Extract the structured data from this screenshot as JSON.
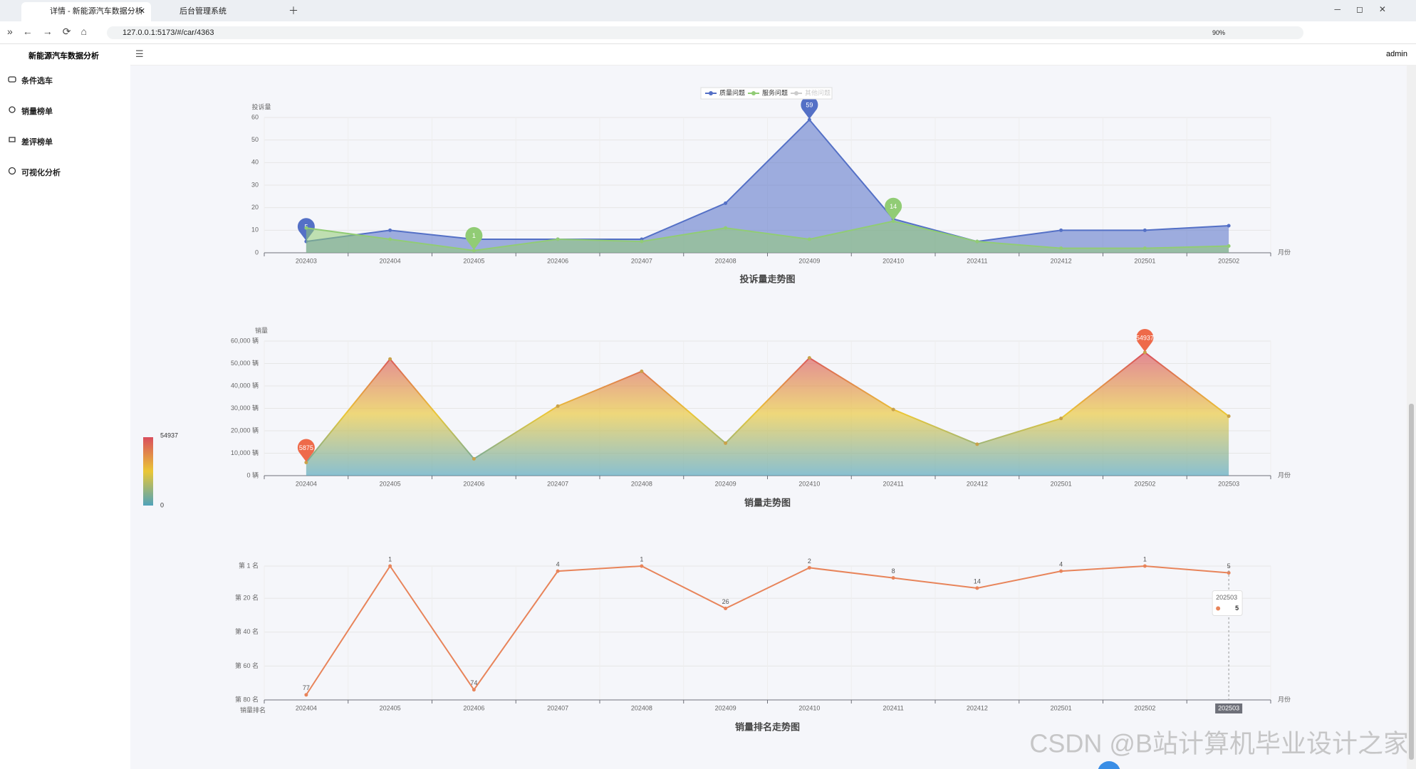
{
  "browser": {
    "tabs": [
      "详情 - 新能源汽车数据分析",
      "后台管理系统"
    ],
    "url": "127.0.0.1:5173/#/car/4363",
    "zoom": "90%"
  },
  "app": {
    "title": "新能源汽车数据分析",
    "user": "admin",
    "menu": [
      "条件选车",
      "销量榜单",
      "差评榜单",
      "可视化分析"
    ]
  },
  "charts": [
    {
      "type": "line",
      "area": true,
      "title": "投诉量走势图",
      "y_name": "投诉量",
      "x_name": "月份",
      "grid": true,
      "mark_points": [
        "max",
        "min"
      ],
      "categories": [
        "202403",
        "202404",
        "202405",
        "202406",
        "202407",
        "202408",
        "202409",
        "202410",
        "202411",
        "202412",
        "202501",
        "202502"
      ],
      "series": [
        {
          "name": "质量问题",
          "color": "#5470c6",
          "values": [
            5,
            10,
            6,
            6,
            6,
            22,
            59,
            15,
            5,
            10,
            10,
            12
          ]
        },
        {
          "name": "服务问题",
          "color": "#91cc75",
          "values": [
            11,
            6,
            1,
            6,
            5,
            11,
            6,
            14,
            5,
            2,
            2,
            3
          ]
        },
        {
          "name": "其他问题",
          "color": "#cccccc",
          "hidden": true
        }
      ],
      "ylim": [
        0,
        60
      ],
      "yticks": [
        0,
        10,
        20,
        30,
        40,
        50,
        60
      ]
    },
    {
      "type": "line",
      "area": true,
      "title": "销量走势图",
      "y_name": "销量",
      "x_name": "月份",
      "grid": true,
      "mark_points": [
        "max",
        "min"
      ],
      "mark_color": "#ee6a4a",
      "categories": [
        "202404",
        "202405",
        "202406",
        "202407",
        "202408",
        "202409",
        "202410",
        "202411",
        "202412",
        "202501",
        "202502",
        "202503"
      ],
      "values": [
        5875,
        52000,
        7500,
        31000,
        46500,
        14500,
        52500,
        29500,
        14000,
        25500,
        54937,
        26500
      ],
      "visual_map": {
        "min": 0,
        "max": 54937,
        "colors": [
          "#d94e5d",
          "#eac736",
          "#50a3ba"
        ]
      },
      "ylim": [
        0,
        60000
      ],
      "yticks": [
        {
          "value": 0,
          "label": "0 辆"
        },
        {
          "value": 10000,
          "label": "10,000 辆"
        },
        {
          "value": 20000,
          "label": "20,000 辆"
        },
        {
          "value": 30000,
          "label": "30,000 辆"
        },
        {
          "value": 40000,
          "label": "40,000 辆"
        },
        {
          "value": 50000,
          "label": "50,000 辆"
        },
        {
          "value": 60000,
          "label": "60,000 辆"
        }
      ]
    },
    {
      "type": "line",
      "area": false,
      "title": "销量排名走势图",
      "y_name": "销量排名",
      "x_name": "月份",
      "grid": true,
      "inverse": true,
      "show_labels": true,
      "color": "#e8845a",
      "categories": [
        "202404",
        "202405",
        "202406",
        "202407",
        "202408",
        "202409",
        "202410",
        "202411",
        "202412",
        "202501",
        "202502",
        "202503"
      ],
      "values": [
        77,
        1,
        74,
        4,
        1,
        26,
        2,
        8,
        14,
        4,
        1,
        5
      ],
      "ylim": [
        1,
        80
      ],
      "yticks": [
        {
          "value": 1,
          "label": "第 1 名"
        },
        {
          "value": 20,
          "label": "第 20 名"
        },
        {
          "value": 40,
          "label": "第 40 名"
        },
        {
          "value": 60,
          "label": "第 60 名"
        },
        {
          "value": 80,
          "label": "第 80 名"
        }
      ]
    }
  ],
  "watermark": "CSDN @B站计算机毕业设计之家"
}
